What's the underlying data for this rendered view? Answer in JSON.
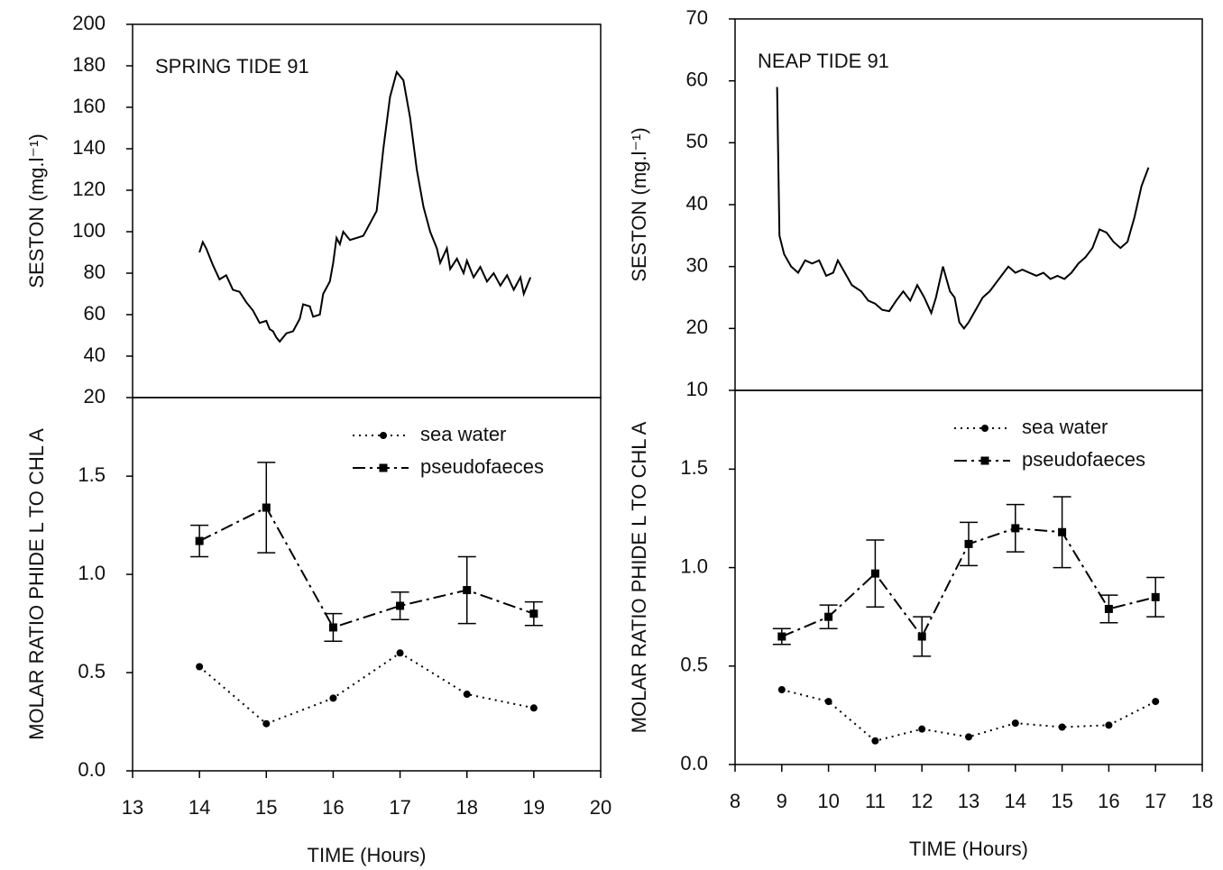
{
  "chart_data": [
    {
      "type": "line",
      "annotation": "SPRING TIDE 91",
      "y_label": "SESTON (mg.l⁻¹)",
      "xlim": [
        13,
        20
      ],
      "ylim": [
        20,
        200
      ],
      "yticks": [
        20,
        40,
        60,
        80,
        100,
        120,
        140,
        160,
        180,
        200
      ],
      "x": [
        14.0,
        14.05,
        14.1,
        14.2,
        14.3,
        14.4,
        14.5,
        14.6,
        14.7,
        14.8,
        14.9,
        15.0,
        15.05,
        15.1,
        15.15,
        15.2,
        15.3,
        15.4,
        15.5,
        15.55,
        15.65,
        15.7,
        15.8,
        15.85,
        15.95,
        16.0,
        16.05,
        16.1,
        16.15,
        16.25,
        16.35,
        16.45,
        16.55,
        16.65,
        16.75,
        16.85,
        16.95,
        17.05,
        17.15,
        17.25,
        17.35,
        17.45,
        17.55,
        17.6,
        17.7,
        17.75,
        17.85,
        17.95,
        18.0,
        18.1,
        18.2,
        18.3,
        18.4,
        18.5,
        18.6,
        18.7,
        18.8,
        18.85,
        18.95
      ],
      "series": [
        {
          "color": "#000000",
          "marker": "none",
          "dash": "solid",
          "values": [
            90,
            95,
            92,
            84,
            77,
            79,
            72,
            71,
            66,
            62,
            56,
            57,
            53,
            52,
            49,
            47,
            51,
            52,
            58,
            65,
            64,
            59,
            60,
            70,
            76,
            85,
            97,
            94,
            100,
            96,
            97,
            98,
            104,
            110,
            140,
            165,
            177,
            173,
            155,
            130,
            112,
            100,
            92,
            85,
            92,
            82,
            87,
            80,
            86,
            78,
            83,
            76,
            80,
            74,
            79,
            72,
            78,
            70,
            78
          ]
        }
      ]
    },
    {
      "type": "line",
      "y_label": "MOLAR RATIO PHIDE L TO CHL A",
      "x_label": "TIME (Hours)",
      "legend": "upper right",
      "xlim": [
        13,
        20
      ],
      "xticks": [
        13,
        14,
        15,
        16,
        17,
        18,
        19,
        20
      ],
      "ylim": [
        0,
        1.9
      ],
      "yticks": [
        {
          "value": 0,
          "label": "0.0"
        },
        0.5,
        {
          "value": 1,
          "label": "1.0"
        },
        1.5
      ],
      "x": [
        14,
        15,
        16,
        17,
        18,
        19
      ],
      "series": [
        {
          "name": "sea water",
          "color": "#000000",
          "marker": "circle",
          "dash": "dotted",
          "values": [
            0.53,
            0.24,
            0.37,
            0.6,
            0.39,
            0.32
          ]
        },
        {
          "name": "pseudofaeces",
          "color": "#000000",
          "marker": "square",
          "dash": "dashdot",
          "values": [
            1.17,
            1.34,
            0.73,
            0.84,
            0.92,
            0.8
          ],
          "errors": [
            0.08,
            0.23,
            0.07,
            0.07,
            0.17,
            0.06
          ]
        }
      ]
    },
    {
      "type": "line",
      "annotation": "NEAP TIDE 91",
      "y_label": "SESTON (mg.l⁻¹)",
      "xlim": [
        8,
        18
      ],
      "ylim": [
        10,
        70
      ],
      "yticks": [
        10,
        20,
        30,
        40,
        50,
        60,
        70
      ],
      "x": [
        8.9,
        8.95,
        9.05,
        9.2,
        9.35,
        9.5,
        9.65,
        9.8,
        9.95,
        10.1,
        10.2,
        10.35,
        10.5,
        10.7,
        10.85,
        11.0,
        11.15,
        11.3,
        11.45,
        11.6,
        11.75,
        11.9,
        12.05,
        12.2,
        12.3,
        12.45,
        12.6,
        12.7,
        12.8,
        12.9,
        13.0,
        13.15,
        13.3,
        13.45,
        13.6,
        13.75,
        13.85,
        14.0,
        14.15,
        14.3,
        14.45,
        14.6,
        14.75,
        14.9,
        15.05,
        15.2,
        15.35,
        15.5,
        15.65,
        15.8,
        15.95,
        16.1,
        16.25,
        16.4,
        16.55,
        16.7,
        16.85
      ],
      "series": [
        {
          "color": "#000000",
          "marker": "none",
          "dash": "solid",
          "values": [
            59,
            35,
            32,
            30,
            29,
            31,
            30.5,
            31,
            28.5,
            29,
            31,
            29,
            27,
            26,
            24.5,
            24,
            23,
            22.8,
            24.5,
            26,
            24.5,
            27,
            25,
            22.5,
            25,
            30,
            26,
            25,
            21,
            20,
            21,
            23,
            25,
            26,
            27.5,
            29,
            30,
            29,
            29.5,
            29,
            28.5,
            29,
            28,
            28.5,
            28,
            29,
            30.5,
            31.5,
            33,
            36,
            35.5,
            34,
            33,
            34,
            38,
            43,
            46
          ]
        }
      ]
    },
    {
      "type": "line",
      "y_label": "MOLAR RATIO PHIDE L TO CHL A",
      "x_label": "TIME (Hours)",
      "legend": "upper right",
      "xlim": [
        8,
        18
      ],
      "xticks": [
        8,
        9,
        10,
        11,
        12,
        13,
        14,
        15,
        16,
        17,
        18
      ],
      "ylim": [
        0,
        1.9
      ],
      "yticks": [
        {
          "value": 0,
          "label": "0.0"
        },
        0.5,
        {
          "value": 1,
          "label": "1.0"
        },
        1.5
      ],
      "x": [
        9,
        10,
        11,
        12,
        13,
        14,
        15,
        16,
        17
      ],
      "series": [
        {
          "name": "sea water",
          "color": "#000000",
          "marker": "circle",
          "dash": "dotted",
          "values": [
            0.38,
            0.32,
            0.12,
            0.18,
            0.14,
            0.21,
            0.19,
            0.2,
            0.32
          ]
        },
        {
          "name": "pseudofaeces",
          "color": "#000000",
          "marker": "square",
          "dash": "dashdot",
          "values": [
            0.65,
            0.75,
            0.97,
            0.65,
            1.12,
            1.2,
            1.18,
            0.79,
            0.85
          ],
          "errors": [
            0.04,
            0.06,
            0.17,
            0.1,
            0.11,
            0.12,
            0.18,
            0.07,
            0.1
          ]
        }
      ]
    }
  ]
}
